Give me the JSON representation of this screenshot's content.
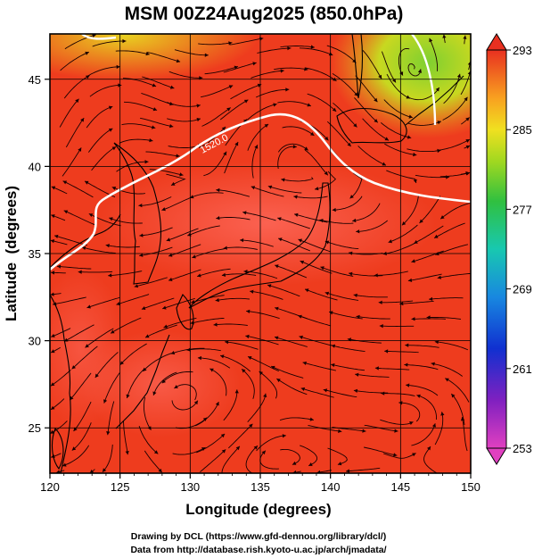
{
  "title": "MSM 00Z24Aug2025 (850.0hPa)",
  "axes": {
    "x_label": "Longitude (degrees)",
    "y_label": "Latitude  (degrees)",
    "x_ticks": [
      "120",
      "125",
      "130",
      "135",
      "140",
      "145",
      "150"
    ],
    "y_ticks": [
      "25",
      "30",
      "35",
      "40",
      "45"
    ],
    "x_range": [
      120,
      150
    ],
    "y_range": [
      22.4,
      47.6
    ]
  },
  "colorbar": {
    "ticks": [
      "293",
      "285",
      "277",
      "269",
      "261",
      "253"
    ],
    "range": [
      253,
      293
    ]
  },
  "contour": {
    "label": "1520.0",
    "value": 1520
  },
  "credits": {
    "line1": "Drawing by DCL (https://www.gfd-dennou.org/library/dcl/)",
    "line2": "Data from http://database.rish.kyoto-u.ac.jp/arch/jmadata/"
  },
  "colors": {
    "field_base": "#ef3a1c",
    "warm_core": "#ff6a5a",
    "cool_north": "#e8c030",
    "contour": "#ffffff",
    "frame": "#000000"
  }
}
